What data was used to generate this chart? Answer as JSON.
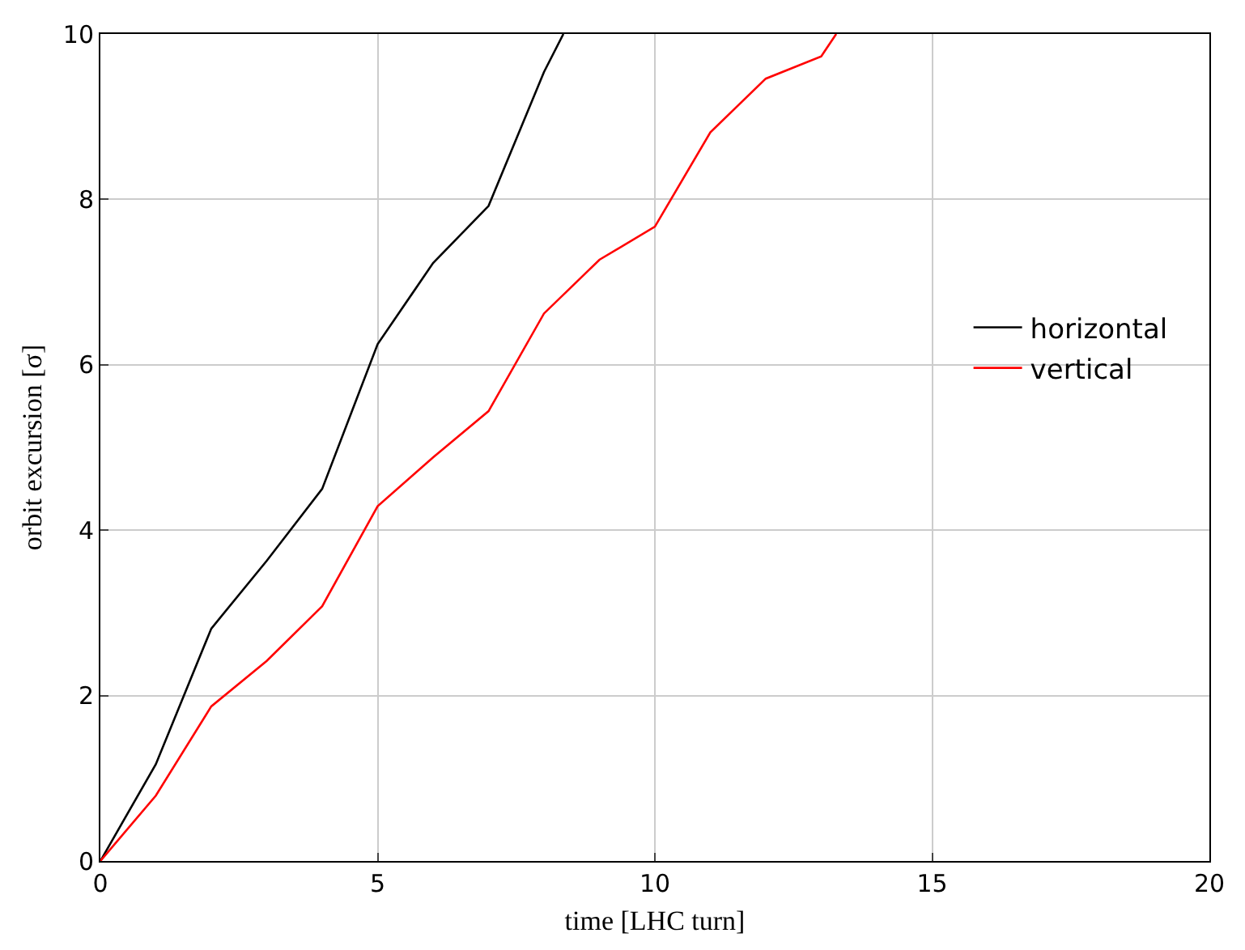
{
  "chart_data": {
    "type": "line",
    "xlabel": "time [LHC turn]",
    "ylabel": "orbit excursion [σ]",
    "xlim": [
      0,
      20
    ],
    "ylim": [
      0,
      10
    ],
    "xticks": [
      0,
      5,
      10,
      15,
      20
    ],
    "yticks": [
      0,
      2,
      4,
      6,
      8,
      10
    ],
    "grid": true,
    "legend": "right",
    "marker": "none",
    "line_style": "solid",
    "series": [
      {
        "name": "horizontal",
        "color": "#000000",
        "x": [
          0,
          1,
          2,
          3,
          4,
          5,
          6,
          7,
          8,
          8.35
        ],
        "values": [
          0,
          1.17,
          2.81,
          3.63,
          4.5,
          6.25,
          7.23,
          7.92,
          9.54,
          10
        ]
      },
      {
        "name": "vertical",
        "color": "#ff0000",
        "x": [
          0,
          1,
          2,
          3,
          4,
          5,
          6,
          7,
          8,
          9,
          10,
          11,
          12,
          13,
          13.27
        ],
        "values": [
          0,
          0.79,
          1.87,
          2.42,
          3.08,
          4.29,
          4.88,
          5.44,
          6.62,
          7.27,
          7.67,
          8.81,
          9.46,
          9.73,
          10
        ]
      }
    ]
  }
}
